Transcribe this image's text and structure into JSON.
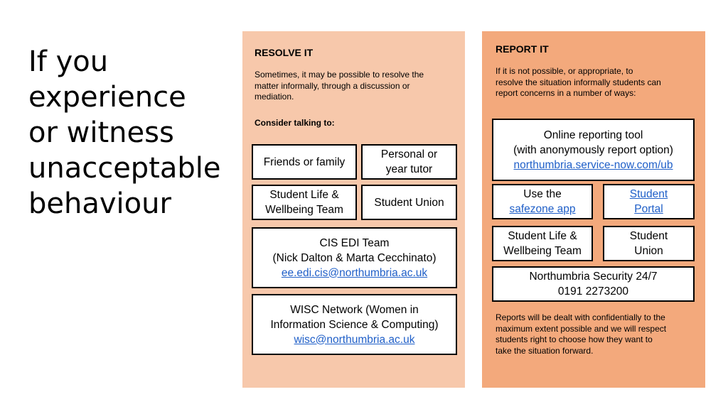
{
  "headline": [
    "If you",
    "experience",
    "or witness",
    "unacceptable",
    "behaviour"
  ],
  "resolve": {
    "title": "RESOLVE IT",
    "intro": [
      "Sometimes, it may be possible to resolve the",
      "matter informally, through a discussion or",
      "mediation."
    ],
    "consider": "Consider talking to:",
    "friends": "Friends or family",
    "tutor": [
      "Personal or",
      "year tutor"
    ],
    "wellbeing": [
      "Student Life &",
      "Wellbeing Team"
    ],
    "union": "Student Union",
    "cis": {
      "name": "CIS EDI Team",
      "people": "(Nick Dalton & Marta Cecchinato)",
      "email": "ee.edi.cis@northumbria.ac.uk"
    },
    "wisc": {
      "line1": "WISC Network (Women in",
      "line2": "Information Science & Computing)",
      "email": "wisc@northumbria.ac.uk"
    }
  },
  "report": {
    "title": "REPORT IT",
    "intro": [
      "If it is not possible, or appropriate, to",
      "resolve the situation informally students can",
      "report concerns in a number of ways:"
    ],
    "online": {
      "line1": "Online reporting tool",
      "line2": "(with anonymously report option)",
      "url": "northumbria.service-now.com/ub"
    },
    "safezone": {
      "line1": "Use the",
      "link": "safezone app"
    },
    "portal": [
      "Student",
      "Portal"
    ],
    "wellbeing": [
      "Student Life &",
      "Wellbeing Team"
    ],
    "union": [
      "Student",
      "Union"
    ],
    "security": {
      "line1": "Northumbria Security 24/7",
      "line2": "0191 2273200"
    },
    "footer": [
      "Reports will be dealt with confidentially to the",
      "maximum extent possible and we will respect",
      "students right to choose how they want to",
      "take the situation forward."
    ]
  },
  "colors": {
    "resolve_bg": "#f7c8ab",
    "report_bg": "#f3a97c",
    "link": "#1f5fc8"
  }
}
